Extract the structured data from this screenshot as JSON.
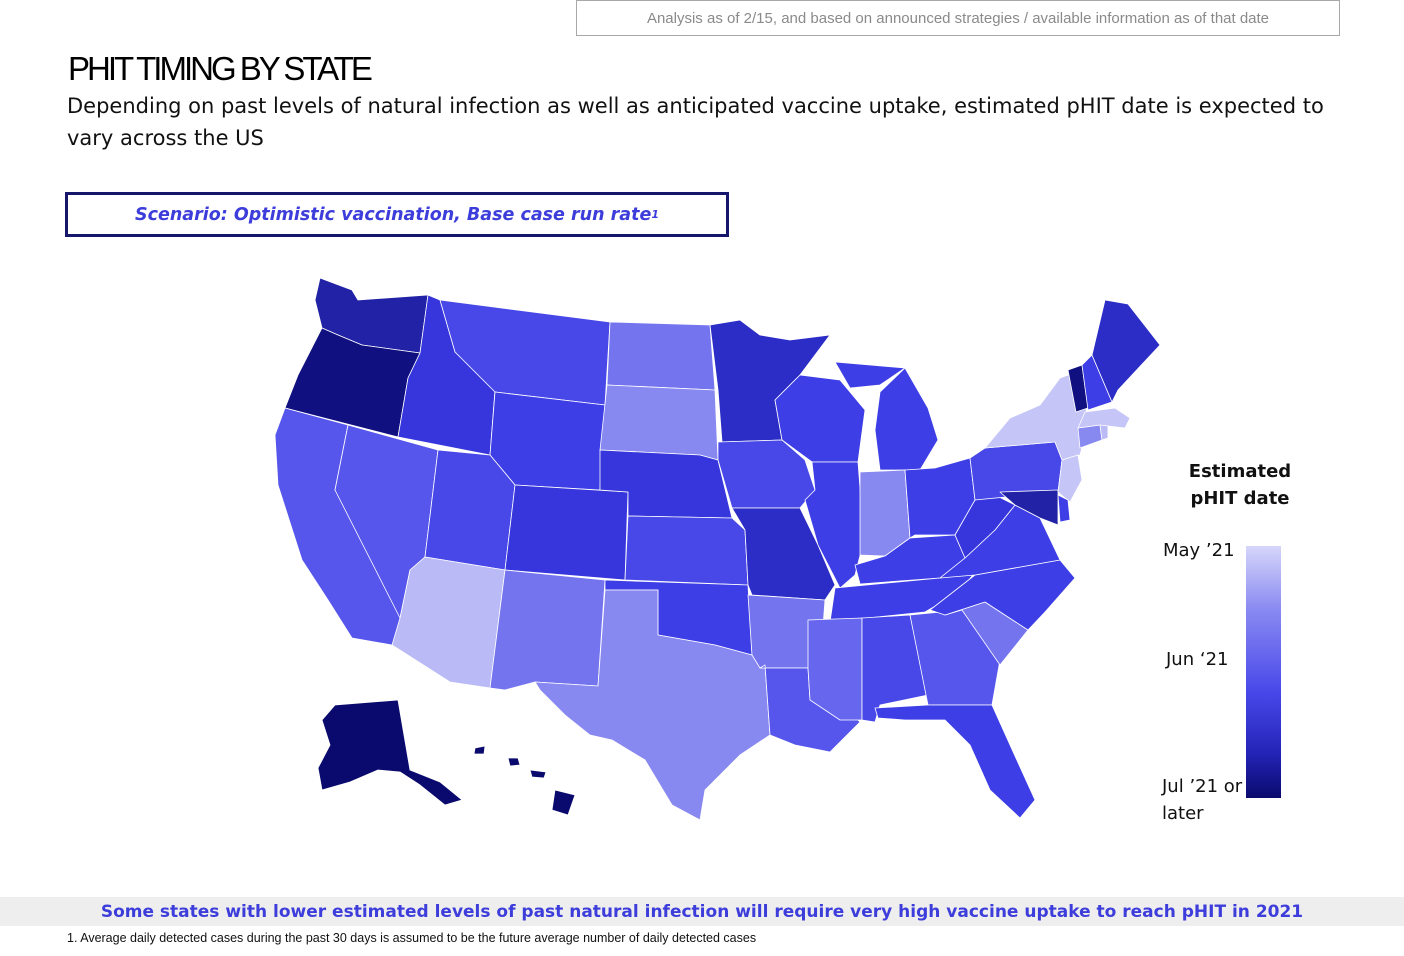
{
  "as_of_note": "Analysis as of 2/15, and based on announced strategies / available information as of that date",
  "title": "PHIT TIMING BY STATE",
  "subtitle": "Depending on past levels of natural infection as well as anticipated vaccine uptake, estimated pHIT date is expected to vary across the US",
  "scenario": {
    "label": "Scenario: Optimistic vaccination, Base case run rate",
    "sup": "1"
  },
  "legend": {
    "title_line1": "Estimated",
    "title_line2": "pHIT date",
    "top": "May ’21",
    "middle": "Jun ‘21",
    "bottom_line1": "Jul ’21 or",
    "bottom_line2": "later"
  },
  "colors": {
    "c1": "#c5c5f7",
    "c2": "#babaf6",
    "c3": "#8888f1",
    "c4": "#7474ef",
    "c5": "#6666ee",
    "c6": "#5656ec",
    "c7": "#4848e8",
    "c8": "#3e3ee6",
    "c9": "#3636dc",
    "c10": "#2c2cc6",
    "c11": "#2222a6",
    "c12": "#101080",
    "c13": "#0a0a6e"
  },
  "states": [
    {
      "id": "WA",
      "color": "c11"
    },
    {
      "id": "OR",
      "color": "c12"
    },
    {
      "id": "CA",
      "color": "c6"
    },
    {
      "id": "NV",
      "color": "c6"
    },
    {
      "id": "ID",
      "color": "c9"
    },
    {
      "id": "MT",
      "color": "c7"
    },
    {
      "id": "WY",
      "color": "c8"
    },
    {
      "id": "UT",
      "color": "c7"
    },
    {
      "id": "AZ",
      "color": "c2"
    },
    {
      "id": "CO",
      "color": "c9"
    },
    {
      "id": "NM",
      "color": "c4"
    },
    {
      "id": "ND",
      "color": "c4"
    },
    {
      "id": "SD",
      "color": "c3"
    },
    {
      "id": "NE",
      "color": "c9"
    },
    {
      "id": "KS",
      "color": "c7"
    },
    {
      "id": "OK",
      "color": "c8"
    },
    {
      "id": "TX",
      "color": "c3"
    },
    {
      "id": "MN",
      "color": "c10"
    },
    {
      "id": "IA",
      "color": "c7"
    },
    {
      "id": "MO",
      "color": "c10"
    },
    {
      "id": "AR",
      "color": "c4"
    },
    {
      "id": "LA",
      "color": "c6"
    },
    {
      "id": "WI",
      "color": "c8"
    },
    {
      "id": "IL",
      "color": "c8"
    },
    {
      "id": "MI",
      "color": "c8"
    },
    {
      "id": "IN",
      "color": "c3"
    },
    {
      "id": "OH",
      "color": "c8"
    },
    {
      "id": "KY",
      "color": "c8"
    },
    {
      "id": "TN",
      "color": "c8"
    },
    {
      "id": "MS",
      "color": "c5"
    },
    {
      "id": "AL",
      "color": "c7"
    },
    {
      "id": "GA",
      "color": "c6"
    },
    {
      "id": "FL",
      "color": "c8"
    },
    {
      "id": "SC",
      "color": "c4"
    },
    {
      "id": "NC",
      "color": "c8"
    },
    {
      "id": "VA",
      "color": "c8"
    },
    {
      "id": "WV",
      "color": "c9"
    },
    {
      "id": "PA",
      "color": "c7"
    },
    {
      "id": "NY",
      "color": "c1"
    },
    {
      "id": "NJ",
      "color": "c1"
    },
    {
      "id": "DE",
      "color": "c8"
    },
    {
      "id": "MD",
      "color": "c11"
    },
    {
      "id": "CT",
      "color": "c3"
    },
    {
      "id": "RI",
      "color": "c2"
    },
    {
      "id": "MA",
      "color": "c1"
    },
    {
      "id": "VT",
      "color": "c12"
    },
    {
      "id": "NH",
      "color": "c8"
    },
    {
      "id": "ME",
      "color": "c10"
    },
    {
      "id": "AK",
      "color": "c13"
    },
    {
      "id": "HI",
      "color": "c13"
    }
  ],
  "banner": "Some states with lower estimated levels of past natural infection will require very high vaccine uptake to reach pHIT in 2021",
  "footnote": "1. Average daily detected cases during the past 30 days is assumed to be the future average number of daily detected cases"
}
